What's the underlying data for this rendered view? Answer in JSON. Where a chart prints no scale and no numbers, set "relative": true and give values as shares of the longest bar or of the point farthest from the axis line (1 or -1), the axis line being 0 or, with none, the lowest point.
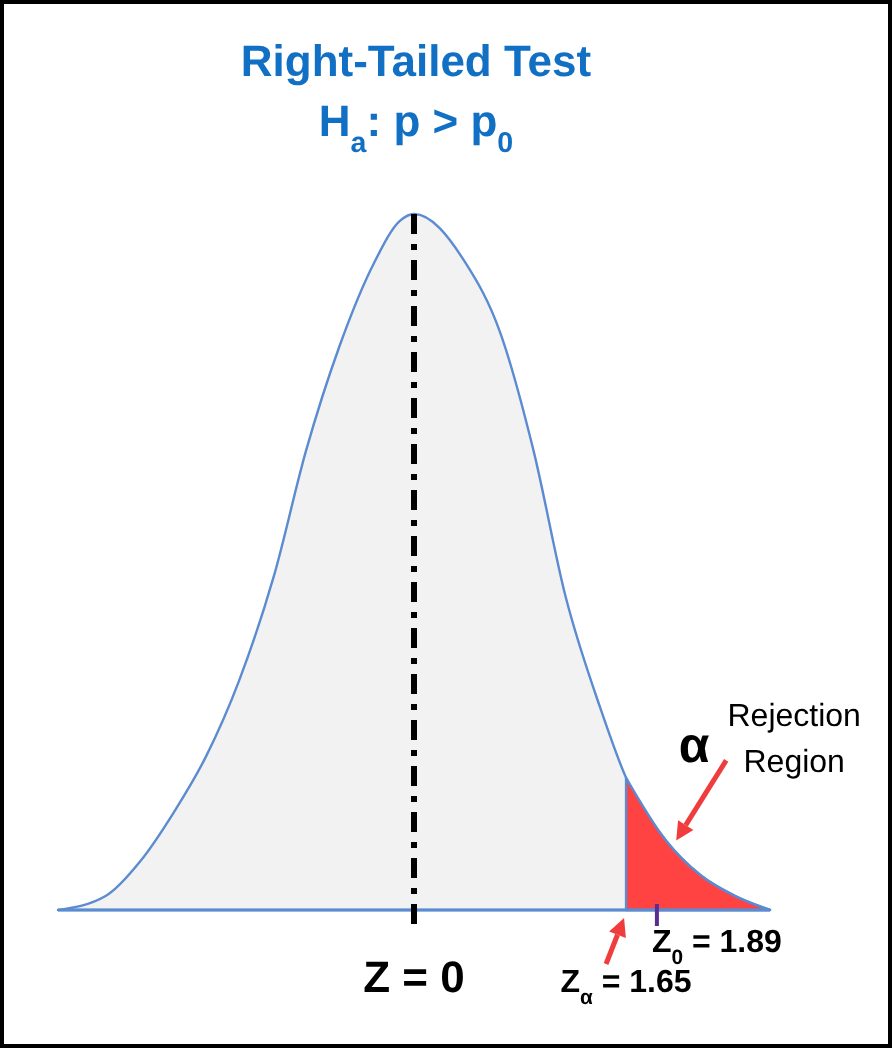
{
  "chart_data": {
    "type": "area",
    "title": "Right-Tailed Test",
    "subtitle": "H$_{a}$: p > p$_{0}$",
    "relative": true,
    "xlim": [
      -2.77,
      2.77
    ],
    "xticks": [
      {
        "value": 0,
        "label": "Z = 0"
      },
      {
        "value": 1.65,
        "label": "Z$_{α}$ = 1.65"
      }
    ],
    "series": [
      {
        "color": "#f2f2f2",
        "x": [
          -2.77,
          -2.4,
          -2.13,
          -1.87,
          -1.62,
          -1.36,
          -1.09,
          -0.84,
          -0.58,
          -0.31,
          -0.11,
          0,
          0.4,
          0.67,
          0.93,
          1.18,
          1.45,
          1.65,
          1.96,
          2.23,
          2.5,
          2.77
        ],
        "values": [
          0,
          0.02,
          0.07,
          0.14,
          0.22,
          0.33,
          0.48,
          0.66,
          0.81,
          0.93,
          0.99,
          1,
          0.93,
          0.83,
          0.66,
          0.45,
          0.29,
          0.19,
          0.1,
          0.05,
          0.02,
          0
        ]
      },
      {
        "color": "#ff4343",
        "x": [
          1.65,
          1.96,
          2.23,
          2.5,
          2.77
        ],
        "values": [
          0.19,
          0.1,
          0.05,
          0.02,
          0
        ]
      }
    ],
    "ref_lines": [
      {
        "axis": "x",
        "value": 0,
        "color": "#000000",
        "line_style": "dashed"
      }
    ],
    "annotations": [
      "α",
      {
        "text": "Rejection Region",
        "x": 2.04,
        "y": 0.1
      },
      {
        "text": "Z$_{0}$ = 1.89",
        "x": 1.89,
        "y": 0
      }
    ]
  }
}
